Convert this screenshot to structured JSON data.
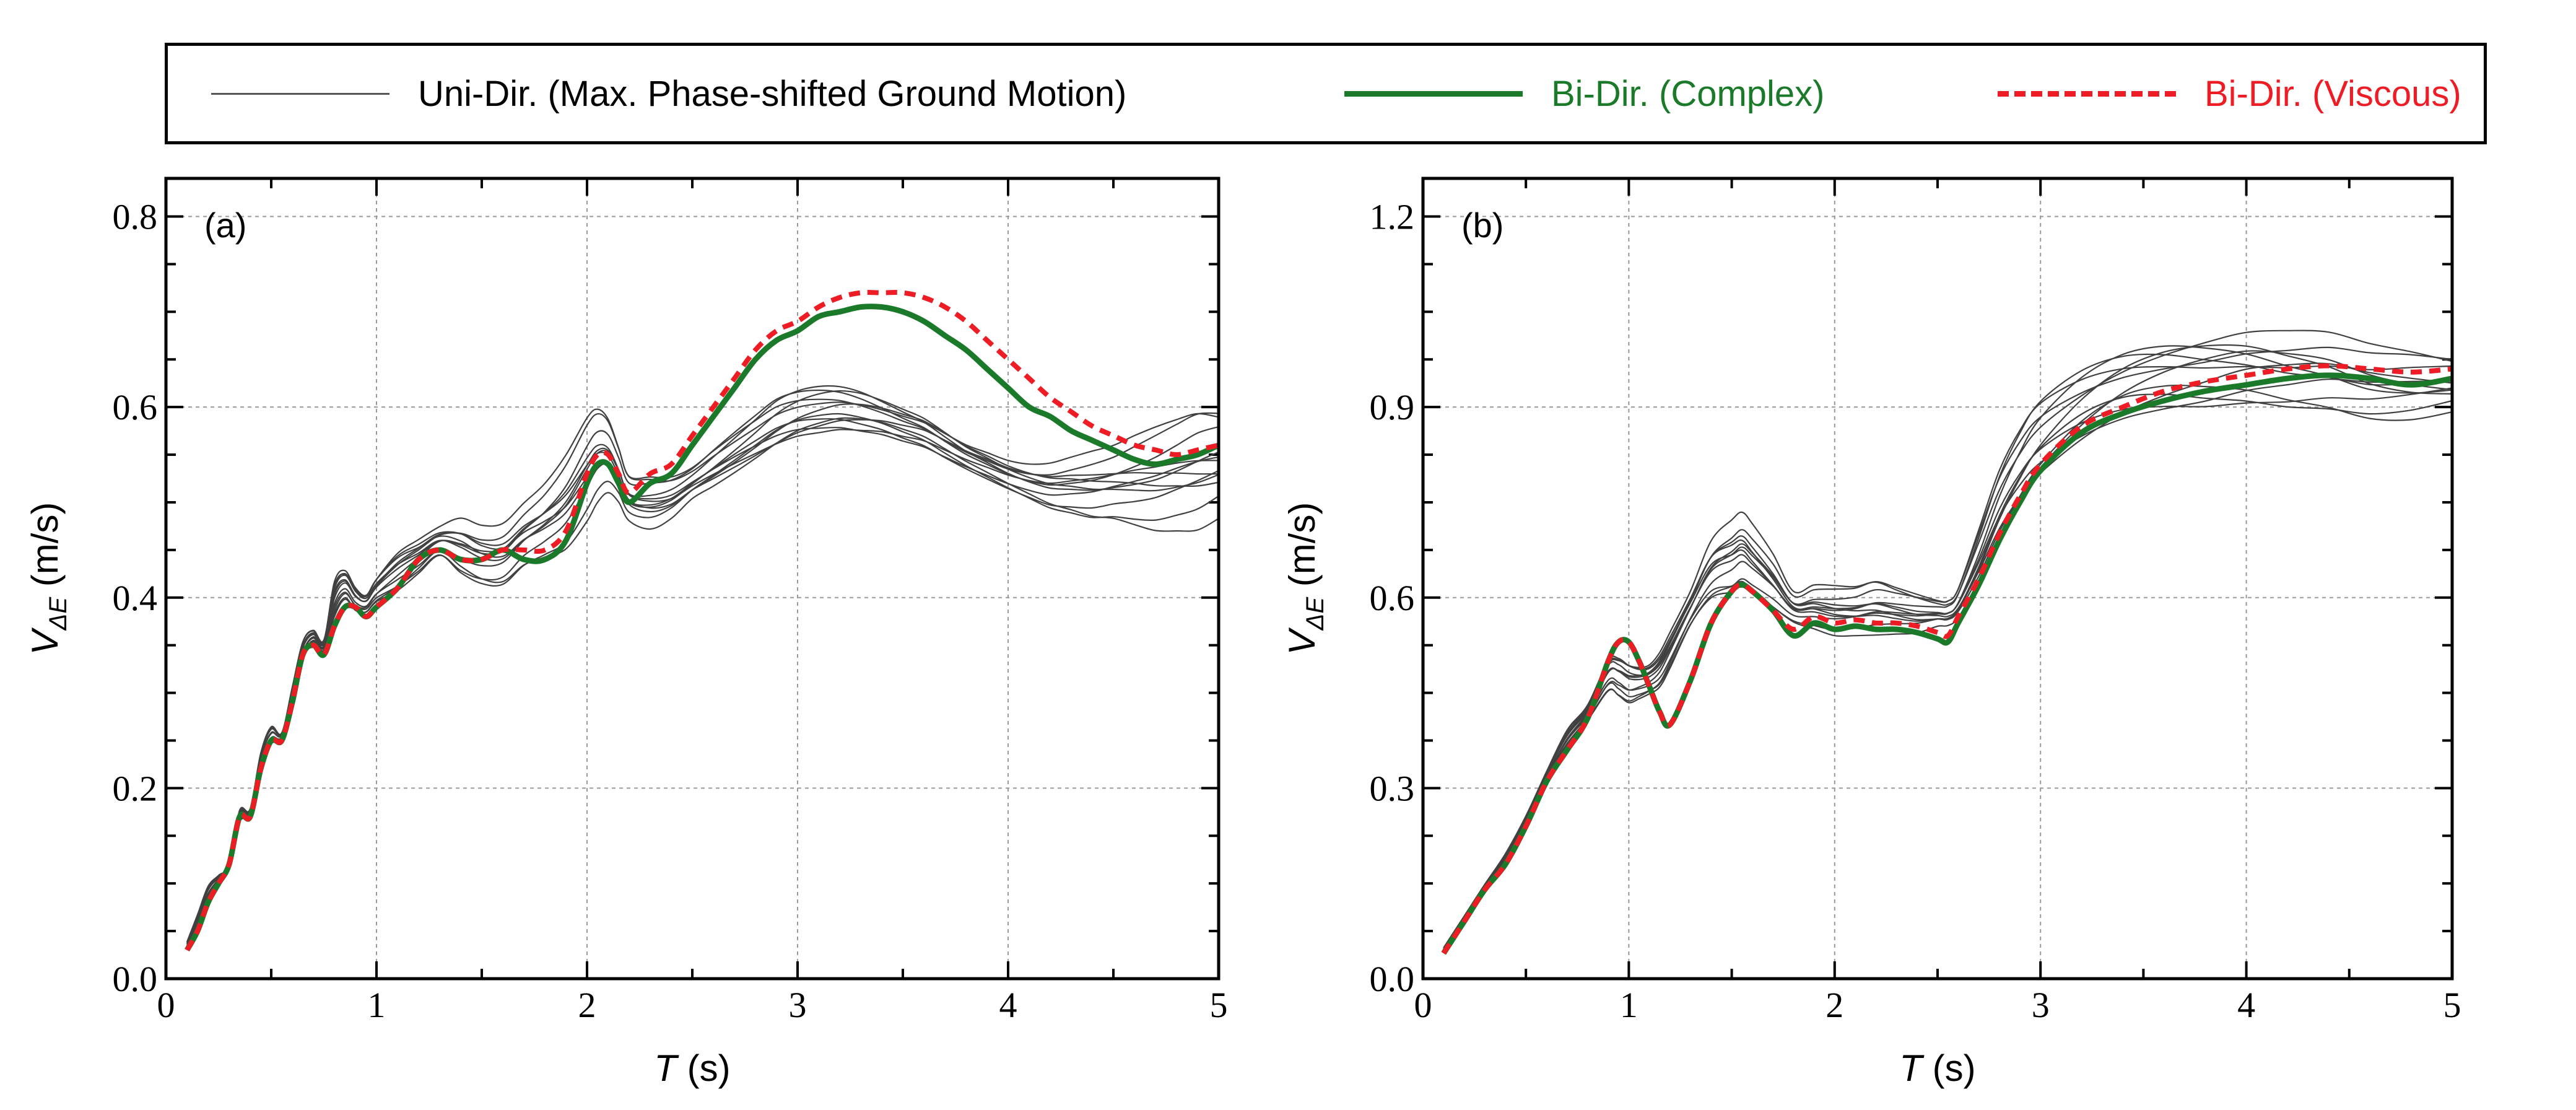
{
  "legend": {
    "items": [
      {
        "label": "Uni-Dir. (Max. Phase-shifted Ground Motion)",
        "color": "#555555",
        "style": "solid-thin",
        "text_color": "#000000"
      },
      {
        "label": "Bi-Dir. (Complex)",
        "color": "#1a7a2a",
        "style": "solid-thick",
        "text_color": "#1a7a2a"
      },
      {
        "label": "Bi-Dir. (Viscous)",
        "color": "#ee1c24",
        "style": "dashed",
        "text_color": "#ee1c24"
      }
    ]
  },
  "chart_data": [
    {
      "type": "line",
      "panel_label": "(a)",
      "xlabel_italic": "T",
      "xlabel_unit": " (s)",
      "ylabel_main": "V",
      "ylabel_sub": "ΔE",
      "ylabel_unit": "(m/s)",
      "xlim": [
        0,
        5
      ],
      "ylim": [
        0,
        0.84
      ],
      "xticks": [
        0,
        1,
        2,
        3,
        4,
        5
      ],
      "xtick_labels": [
        "0",
        "1",
        "2",
        "3",
        "4",
        "5"
      ],
      "yticks": [
        0.0,
        0.2,
        0.4,
        0.6,
        0.8
      ],
      "ytick_labels": [
        "0.0",
        "0.2",
        "0.4",
        "0.6",
        "0.8"
      ],
      "grid": true,
      "series": [
        {
          "name": "Bi-Dir. (Complex)",
          "color": "#1a7a2a",
          "style": "solid-thick",
          "x": [
            0.1,
            0.15,
            0.2,
            0.25,
            0.3,
            0.35,
            0.4,
            0.45,
            0.5,
            0.55,
            0.6,
            0.65,
            0.7,
            0.75,
            0.8,
            0.85,
            0.9,
            0.95,
            1.0,
            1.1,
            1.2,
            1.3,
            1.4,
            1.5,
            1.6,
            1.7,
            1.8,
            1.9,
            2.0,
            2.05,
            2.1,
            2.15,
            2.2,
            2.3,
            2.4,
            2.5,
            2.6,
            2.7,
            2.8,
            2.9,
            3.0,
            3.1,
            3.2,
            3.3,
            3.4,
            3.5,
            3.6,
            3.7,
            3.8,
            3.9,
            4.0,
            4.1,
            4.2,
            4.3,
            4.4,
            4.5,
            4.6,
            4.7,
            4.8,
            4.9,
            5.0
          ],
          "values": [
            0.03,
            0.05,
            0.08,
            0.1,
            0.12,
            0.17,
            0.17,
            0.22,
            0.25,
            0.25,
            0.29,
            0.34,
            0.35,
            0.34,
            0.37,
            0.39,
            0.39,
            0.38,
            0.39,
            0.41,
            0.44,
            0.45,
            0.44,
            0.44,
            0.45,
            0.44,
            0.44,
            0.46,
            0.52,
            0.54,
            0.54,
            0.52,
            0.5,
            0.52,
            0.53,
            0.56,
            0.59,
            0.62,
            0.65,
            0.67,
            0.68,
            0.695,
            0.7,
            0.705,
            0.705,
            0.7,
            0.69,
            0.675,
            0.66,
            0.64,
            0.62,
            0.6,
            0.59,
            0.575,
            0.565,
            0.555,
            0.545,
            0.54,
            0.545,
            0.55,
            0.56
          ]
        },
        {
          "name": "Bi-Dir. (Viscous)",
          "color": "#ee1c24",
          "style": "dashed",
          "x": [
            0.1,
            0.15,
            0.2,
            0.25,
            0.3,
            0.35,
            0.4,
            0.45,
            0.5,
            0.55,
            0.6,
            0.65,
            0.7,
            0.75,
            0.8,
            0.85,
            0.9,
            0.95,
            1.0,
            1.1,
            1.2,
            1.3,
            1.4,
            1.5,
            1.6,
            1.7,
            1.8,
            1.9,
            2.0,
            2.05,
            2.1,
            2.15,
            2.2,
            2.3,
            2.4,
            2.5,
            2.6,
            2.7,
            2.8,
            2.9,
            3.0,
            3.1,
            3.2,
            3.3,
            3.4,
            3.5,
            3.6,
            3.7,
            3.8,
            3.9,
            4.0,
            4.1,
            4.2,
            4.3,
            4.4,
            4.5,
            4.6,
            4.7,
            4.8,
            4.9,
            5.0
          ],
          "values": [
            0.03,
            0.05,
            0.08,
            0.1,
            0.12,
            0.17,
            0.17,
            0.22,
            0.25,
            0.25,
            0.29,
            0.34,
            0.35,
            0.34,
            0.37,
            0.39,
            0.39,
            0.38,
            0.39,
            0.41,
            0.44,
            0.45,
            0.44,
            0.44,
            0.45,
            0.45,
            0.45,
            0.47,
            0.53,
            0.55,
            0.55,
            0.53,
            0.51,
            0.53,
            0.54,
            0.57,
            0.6,
            0.63,
            0.66,
            0.68,
            0.69,
            0.705,
            0.715,
            0.72,
            0.72,
            0.72,
            0.715,
            0.705,
            0.69,
            0.67,
            0.65,
            0.63,
            0.61,
            0.595,
            0.58,
            0.57,
            0.56,
            0.555,
            0.55,
            0.555,
            0.56
          ]
        }
      ],
      "thin_ensemble": {
        "count": 12,
        "color": "#404040",
        "x": [
          0.1,
          0.15,
          0.2,
          0.25,
          0.3,
          0.35,
          0.4,
          0.45,
          0.5,
          0.55,
          0.6,
          0.65,
          0.7,
          0.75,
          0.8,
          0.85,
          0.9,
          0.95,
          1.0,
          1.1,
          1.2,
          1.3,
          1.4,
          1.5,
          1.6,
          1.7,
          1.8,
          1.9,
          2.0,
          2.05,
          2.1,
          2.15,
          2.2,
          2.3,
          2.4,
          2.5,
          2.6,
          2.7,
          2.8,
          2.9,
          3.0,
          3.1,
          3.2,
          3.3,
          3.4,
          3.5,
          3.6,
          3.7,
          3.8,
          3.9,
          4.0,
          4.1,
          4.2,
          4.3,
          4.4,
          4.5,
          4.6,
          4.7,
          4.8,
          4.9,
          5.0
        ],
        "lower": [
          0.03,
          0.05,
          0.08,
          0.1,
          0.12,
          0.16,
          0.17,
          0.22,
          0.24,
          0.25,
          0.29,
          0.33,
          0.35,
          0.34,
          0.37,
          0.39,
          0.38,
          0.38,
          0.39,
          0.4,
          0.42,
          0.44,
          0.42,
          0.41,
          0.41,
          0.43,
          0.44,
          0.45,
          0.48,
          0.5,
          0.51,
          0.5,
          0.48,
          0.47,
          0.48,
          0.5,
          0.51,
          0.52,
          0.53,
          0.54,
          0.55,
          0.555,
          0.56,
          0.56,
          0.56,
          0.555,
          0.55,
          0.54,
          0.53,
          0.52,
          0.51,
          0.5,
          0.49,
          0.485,
          0.48,
          0.48,
          0.475,
          0.47,
          0.47,
          0.47,
          0.48
        ],
        "upper": [
          0.04,
          0.07,
          0.1,
          0.11,
          0.12,
          0.18,
          0.18,
          0.24,
          0.27,
          0.26,
          0.31,
          0.36,
          0.37,
          0.36,
          0.43,
          0.44,
          0.42,
          0.41,
          0.43,
          0.46,
          0.47,
          0.48,
          0.49,
          0.48,
          0.48,
          0.5,
          0.52,
          0.55,
          0.59,
          0.6,
          0.59,
          0.56,
          0.53,
          0.53,
          0.53,
          0.54,
          0.56,
          0.58,
          0.6,
          0.62,
          0.63,
          0.635,
          0.635,
          0.63,
          0.62,
          0.61,
          0.6,
          0.585,
          0.57,
          0.56,
          0.55,
          0.545,
          0.545,
          0.55,
          0.555,
          0.56,
          0.57,
          0.58,
          0.59,
          0.6,
          0.6
        ]
      }
    },
    {
      "type": "line",
      "panel_label": "(b)",
      "xlabel_italic": "T",
      "xlabel_unit": " (s)",
      "ylabel_main": "V",
      "ylabel_sub": "ΔE",
      "ylabel_unit": "(m/s)",
      "xlim": [
        0,
        5
      ],
      "ylim": [
        0,
        1.26
      ],
      "xticks": [
        0,
        1,
        2,
        3,
        4,
        5
      ],
      "xtick_labels": [
        "0",
        "1",
        "2",
        "3",
        "4",
        "5"
      ],
      "yticks": [
        0.0,
        0.3,
        0.6,
        0.9,
        1.2
      ],
      "ytick_labels": [
        "0.0",
        "0.3",
        "0.6",
        "0.9",
        "1.2"
      ],
      "grid": true,
      "series": [
        {
          "name": "Bi-Dir. (Complex)",
          "color": "#1a7a2a",
          "style": "solid-thick",
          "x": [
            0.1,
            0.2,
            0.3,
            0.4,
            0.5,
            0.6,
            0.7,
            0.8,
            0.9,
            0.95,
            1.0,
            1.05,
            1.1,
            1.15,
            1.2,
            1.3,
            1.4,
            1.5,
            1.55,
            1.6,
            1.7,
            1.8,
            1.9,
            2.0,
            2.1,
            2.2,
            2.3,
            2.4,
            2.5,
            2.55,
            2.6,
            2.7,
            2.8,
            2.9,
            3.0,
            3.2,
            3.4,
            3.6,
            3.8,
            4.0,
            4.2,
            4.4,
            4.6,
            4.8,
            5.0
          ],
          "values": [
            0.04,
            0.09,
            0.14,
            0.18,
            0.24,
            0.31,
            0.36,
            0.41,
            0.5,
            0.53,
            0.53,
            0.5,
            0.46,
            0.42,
            0.4,
            0.47,
            0.56,
            0.61,
            0.62,
            0.61,
            0.58,
            0.54,
            0.56,
            0.55,
            0.555,
            0.55,
            0.55,
            0.545,
            0.535,
            0.53,
            0.56,
            0.62,
            0.69,
            0.75,
            0.8,
            0.86,
            0.89,
            0.91,
            0.925,
            0.935,
            0.945,
            0.95,
            0.945,
            0.935,
            0.945
          ]
        },
        {
          "name": "Bi-Dir. (Viscous)",
          "color": "#ee1c24",
          "style": "dashed",
          "x": [
            0.1,
            0.2,
            0.3,
            0.4,
            0.5,
            0.6,
            0.7,
            0.8,
            0.9,
            0.95,
            1.0,
            1.05,
            1.1,
            1.15,
            1.2,
            1.3,
            1.4,
            1.5,
            1.55,
            1.6,
            1.7,
            1.8,
            1.9,
            2.0,
            2.1,
            2.2,
            2.3,
            2.4,
            2.5,
            2.55,
            2.6,
            2.7,
            2.8,
            2.9,
            3.0,
            3.2,
            3.4,
            3.6,
            3.8,
            4.0,
            4.2,
            4.4,
            4.6,
            4.8,
            5.0
          ],
          "values": [
            0.04,
            0.09,
            0.14,
            0.18,
            0.24,
            0.31,
            0.36,
            0.41,
            0.5,
            0.53,
            0.53,
            0.5,
            0.46,
            0.42,
            0.4,
            0.47,
            0.56,
            0.61,
            0.62,
            0.61,
            0.58,
            0.55,
            0.57,
            0.56,
            0.565,
            0.56,
            0.56,
            0.555,
            0.545,
            0.54,
            0.57,
            0.63,
            0.7,
            0.76,
            0.81,
            0.87,
            0.9,
            0.925,
            0.94,
            0.95,
            0.96,
            0.965,
            0.96,
            0.955,
            0.96
          ]
        }
      ],
      "thin_ensemble": {
        "count": 12,
        "color": "#404040",
        "x": [
          0.1,
          0.2,
          0.3,
          0.4,
          0.5,
          0.6,
          0.7,
          0.8,
          0.9,
          0.95,
          1.0,
          1.05,
          1.1,
          1.15,
          1.2,
          1.3,
          1.4,
          1.5,
          1.55,
          1.6,
          1.7,
          1.8,
          1.9,
          2.0,
          2.1,
          2.2,
          2.3,
          2.4,
          2.5,
          2.55,
          2.6,
          2.7,
          2.8,
          2.9,
          3.0,
          3.2,
          3.4,
          3.6,
          3.8,
          4.0,
          4.2,
          4.4,
          4.6,
          4.8,
          5.0
        ],
        "lower": [
          0.04,
          0.09,
          0.14,
          0.18,
          0.24,
          0.31,
          0.36,
          0.4,
          0.44,
          0.43,
          0.42,
          0.43,
          0.44,
          0.45,
          0.48,
          0.55,
          0.59,
          0.6,
          0.61,
          0.6,
          0.58,
          0.56,
          0.55,
          0.54,
          0.54,
          0.54,
          0.54,
          0.54,
          0.55,
          0.55,
          0.56,
          0.6,
          0.66,
          0.71,
          0.75,
          0.81,
          0.85,
          0.87,
          0.88,
          0.89,
          0.89,
          0.89,
          0.88,
          0.88,
          0.89
        ],
        "upper": [
          0.05,
          0.1,
          0.15,
          0.2,
          0.26,
          0.33,
          0.4,
          0.44,
          0.52,
          0.53,
          0.52,
          0.51,
          0.51,
          0.53,
          0.56,
          0.62,
          0.7,
          0.73,
          0.74,
          0.72,
          0.67,
          0.61,
          0.62,
          0.62,
          0.62,
          0.63,
          0.62,
          0.61,
          0.6,
          0.6,
          0.62,
          0.72,
          0.82,
          0.89,
          0.94,
          0.99,
          1.02,
          1.035,
          1.04,
          1.04,
          1.03,
          1.02,
          1.0,
          0.99,
          0.98
        ]
      }
    }
  ]
}
